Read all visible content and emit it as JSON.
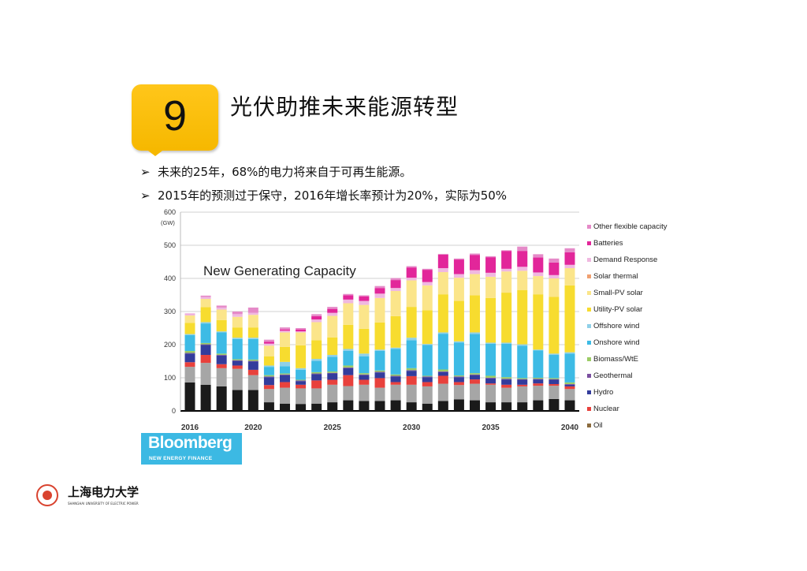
{
  "header": {
    "number": "9",
    "title": "光伏助推未来能源转型"
  },
  "bullets": [
    {
      "marker": "➢",
      "text": "未来的25年，68%的电力将来自于可再生能源。"
    },
    {
      "marker": "➢",
      "text": "2015年的预测过于保守，2016年增长率预计为20%，实际为50%"
    }
  ],
  "source_logo": {
    "name": "Bloomberg",
    "sub": "NEW ENERGY FINANCE",
    "color": "#3cb9e3"
  },
  "university": {
    "name": "上海电力大学",
    "name_en": "SHANGHAI UNIVERSITY OF ELECTRIC POWER"
  },
  "chart_data": {
    "type": "bar",
    "stacked": true,
    "title": "New Generating Capacity",
    "ylabel": "(GW)",
    "ylim": [
      0,
      600
    ],
    "yticks": [
      0,
      100,
      200,
      300,
      400,
      500,
      600
    ],
    "xtick_labels": [
      "2016",
      "2020",
      "2025",
      "2030",
      "2035",
      "2040"
    ],
    "grid": true,
    "legend": "right",
    "categories": [
      2016,
      2017,
      2018,
      2019,
      2020,
      2021,
      2022,
      2023,
      2024,
      2025,
      2026,
      2027,
      2028,
      2029,
      2030,
      2031,
      2032,
      2033,
      2034,
      2035,
      2036,
      2037,
      2038,
      2039,
      2040
    ],
    "series": [
      {
        "color": "#1a1a1a",
        "values": [
          86,
          79,
          74,
          63,
          63,
          26,
          22,
          21,
          22,
          26,
          32,
          30,
          30,
          32,
          26,
          22,
          30,
          35,
          32,
          26,
          26,
          26,
          32,
          36,
          32
        ]
      },
      {
        "color": "#a6a6a6",
        "values": [
          47,
          66,
          55,
          64,
          45,
          40,
          48,
          47,
          46,
          53,
          43,
          49,
          40,
          47,
          53,
          52,
          52,
          43,
          50,
          53,
          44,
          48,
          44,
          40,
          34
        ]
      },
      {
        "name": "Oil",
        "color": "#8b6b3d",
        "values": [
          0,
          0,
          0,
          0,
          0,
          0,
          0,
          0,
          0,
          0,
          0,
          0,
          0,
          0,
          0,
          0,
          0,
          0,
          0,
          0,
          0,
          0,
          0,
          0,
          0
        ]
      },
      {
        "name": "Nuclear",
        "color": "#e8413c",
        "values": [
          14,
          24,
          12,
          10,
          16,
          12,
          17,
          11,
          24,
          15,
          33,
          15,
          29,
          8,
          26,
          13,
          24,
          9,
          13,
          4,
          9,
          5,
          7,
          5,
          8
        ]
      },
      {
        "name": "Hydro",
        "color": "#333c9c",
        "values": [
          26,
          30,
          26,
          14,
          25,
          24,
          21,
          11,
          19,
          19,
          21,
          14,
          17,
          17,
          16,
          15,
          11,
          15,
          13,
          15,
          16,
          15,
          12,
          13,
          5
        ]
      },
      {
        "name": "Geothermal",
        "color": "#7b4fa0",
        "values": [
          2,
          2,
          2,
          2,
          2,
          2,
          2,
          2,
          2,
          2,
          2,
          2,
          2,
          2,
          2,
          2,
          2,
          2,
          2,
          2,
          2,
          2,
          2,
          2,
          2
        ]
      },
      {
        "name": "Biomass/WtE",
        "color": "#9ccc65",
        "values": [
          6,
          4,
          4,
          3,
          4,
          4,
          3,
          2,
          4,
          4,
          6,
          4,
          4,
          4,
          6,
          2,
          6,
          3,
          4,
          6,
          5,
          3,
          3,
          3,
          5
        ]
      },
      {
        "name": "Onshore wind",
        "color": "#3dbbe5",
        "values": [
          48,
          59,
          64,
          61,
          62,
          25,
          22,
          30,
          34,
          44,
          44,
          51,
          59,
          77,
          84,
          93,
          108,
          99,
          118,
          97,
          101,
          98,
          83,
          70,
          87
        ]
      },
      {
        "name": "Offshore wind",
        "color": "#8fd0e8",
        "values": [
          3,
          4,
          3,
          4,
          4,
          4,
          13,
          5,
          6,
          6,
          6,
          8,
          4,
          4,
          8,
          3,
          4,
          4,
          5,
          3,
          3,
          4,
          2,
          4,
          4
        ]
      },
      {
        "name": "Utility-PV solar",
        "color": "#f7dc2f",
        "values": [
          34,
          45,
          34,
          31,
          31,
          28,
          45,
          69,
          56,
          53,
          73,
          75,
          82,
          95,
          93,
          102,
          115,
          122,
          112,
          135,
          151,
          164,
          167,
          171,
          202
        ]
      },
      {
        "name": "Small-PV solar",
        "color": "#fbe58a",
        "values": [
          22,
          25,
          32,
          32,
          38,
          32,
          44,
          39,
          55,
          65,
          65,
          72,
          74,
          76,
          80,
          75,
          67,
          70,
          64,
          64,
          64,
          58,
          55,
          56,
          52
        ]
      },
      {
        "name": "Solar thermal",
        "color": "#f0a070",
        "values": [
          0,
          0,
          0,
          0,
          0,
          0,
          0,
          0,
          0,
          0,
          0,
          0,
          0,
          0,
          0,
          0,
          0,
          0,
          0,
          0,
          0,
          0,
          0,
          0,
          0
        ]
      },
      {
        "name": "Demand Response",
        "color": "#f0b8e0",
        "values": [
          4,
          6,
          6,
          8,
          6,
          6,
          5,
          3,
          8,
          9,
          11,
          12,
          13,
          9,
          8,
          10,
          12,
          11,
          12,
          12,
          8,
          12,
          11,
          10,
          10
        ]
      },
      {
        "name": "Batteries",
        "color": "#e2269a",
        "values": [
          0,
          0,
          0,
          0,
          0,
          6,
          4,
          6,
          10,
          12,
          13,
          14,
          17,
          24,
          31,
          37,
          41,
          44,
          46,
          47,
          54,
          48,
          45,
          38,
          38
        ]
      },
      {
        "name": "Other flexible capacity",
        "color": "#e58ac8",
        "values": [
          2,
          4,
          6,
          8,
          16,
          6,
          6,
          4,
          6,
          6,
          4,
          3,
          6,
          6,
          4,
          3,
          2,
          3,
          4,
          3,
          2,
          13,
          10,
          12,
          12
        ]
      }
    ]
  }
}
